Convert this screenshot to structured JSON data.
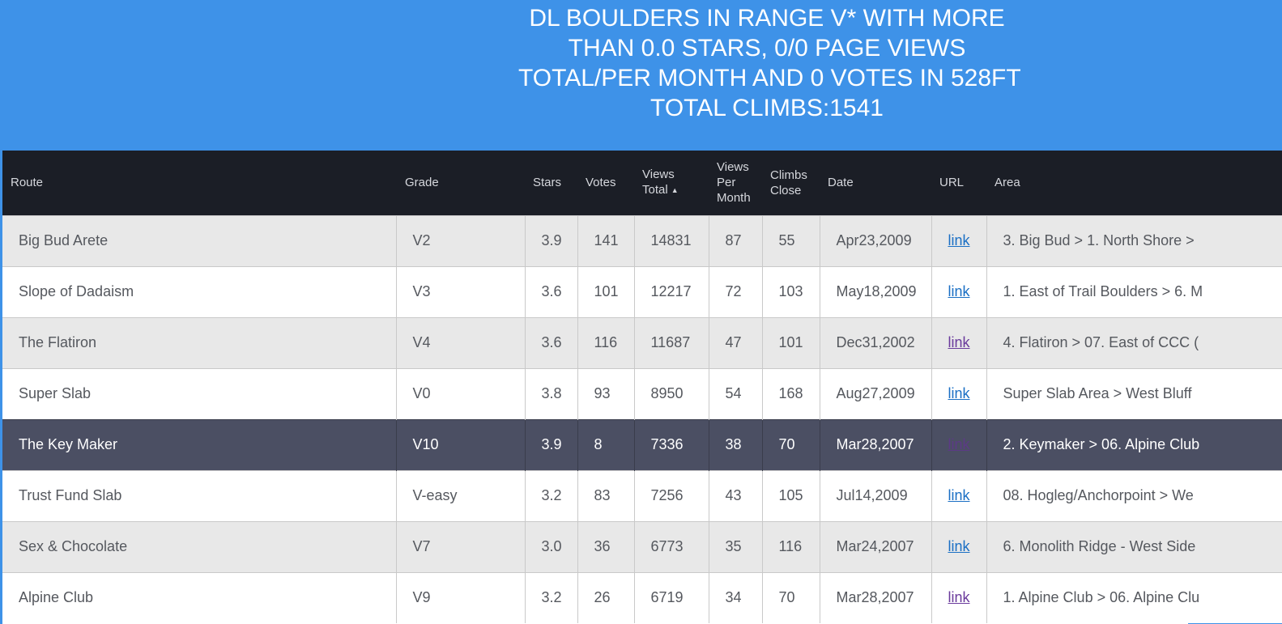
{
  "header": {
    "title_lines": [
      "DL BOULDERS IN RANGE V* WITH MORE",
      "THAN 0.0 STARS, 0/0 PAGE VIEWS",
      "TOTAL/PER MONTH AND 0 VOTES IN 528FT",
      "TOTAL CLIMBS:1541"
    ]
  },
  "table": {
    "columns": {
      "route": "Route",
      "grade": "Grade",
      "stars": "Stars",
      "votes": "Votes",
      "views_total_1": "Views",
      "views_total_2": "Total",
      "views_total_sort": "▲",
      "views_per_month_1": "Views",
      "views_per_month_2": "Per",
      "views_per_month_3": "Month",
      "climbs_close_1": "Climbs",
      "climbs_close_2": "Close",
      "date": "Date",
      "url": "URL",
      "area": "Area"
    },
    "rows": [
      {
        "route": "Big Bud Arete",
        "grade": "V2",
        "stars": "3.9",
        "votes": "141",
        "views_total": "14831",
        "views_per_month": "87",
        "climbs_close": "55",
        "date": "Apr23,2009",
        "url": "link",
        "area": "3. Big Bud > 1. North Shore >"
      },
      {
        "route": "Slope of Dadaism",
        "grade": "V3",
        "stars": "3.6",
        "votes": "101",
        "views_total": "12217",
        "views_per_month": "72",
        "climbs_close": "103",
        "date": "May18,2009",
        "url": "link",
        "area": "1. East of Trail Boulders > 6. M"
      },
      {
        "route": "The Flatiron",
        "grade": "V4",
        "stars": "3.6",
        "votes": "116",
        "views_total": "11687",
        "views_per_month": "47",
        "climbs_close": "101",
        "date": "Dec31,2002",
        "url": "link",
        "area": "4. Flatiron > 07. East of CCC ("
      },
      {
        "route": "Super Slab",
        "grade": "V0",
        "stars": "3.8",
        "votes": "93",
        "views_total": "8950",
        "views_per_month": "54",
        "climbs_close": "168",
        "date": "Aug27,2009",
        "url": "link",
        "area": "Super Slab Area > West Bluff"
      },
      {
        "route": "The Key Maker",
        "grade": "V10",
        "stars": "3.9",
        "votes": "8",
        "views_total": "7336",
        "views_per_month": "38",
        "climbs_close": "70",
        "date": "Mar28,2007",
        "url": "link",
        "area": "2. Keymaker > 06. Alpine Club"
      },
      {
        "route": "Trust Fund Slab",
        "grade": "V-easy",
        "stars": "3.2",
        "votes": "83",
        "views_total": "7256",
        "views_per_month": "43",
        "climbs_close": "105",
        "date": "Jul14,2009",
        "url": "link",
        "area": "08. Hogleg/Anchorpoint > We"
      },
      {
        "route": "Sex & Chocolate",
        "grade": "V7",
        "stars": "3.0",
        "votes": "36",
        "views_total": "6773",
        "views_per_month": "35",
        "climbs_close": "116",
        "date": "Mar24,2007",
        "url": "link",
        "area": "6. Monolith Ridge - West Side"
      },
      {
        "route": "Alpine Club",
        "grade": "V9",
        "stars": "3.2",
        "votes": "26",
        "views_total": "6719",
        "views_per_month": "34",
        "climbs_close": "70",
        "date": "Mar28,2007",
        "url": "link",
        "area": "1. Alpine Club > 06. Alpine Clu"
      }
    ]
  },
  "colors": {
    "header_bg": "#3e92e8",
    "table_header_bg": "#1b1e26",
    "row_odd": "#e8e8e8",
    "row_even": "#ffffff",
    "row_selected": "#4b4f63",
    "link": "#1a6fc4",
    "link_visited": "#6a3a9c"
  }
}
